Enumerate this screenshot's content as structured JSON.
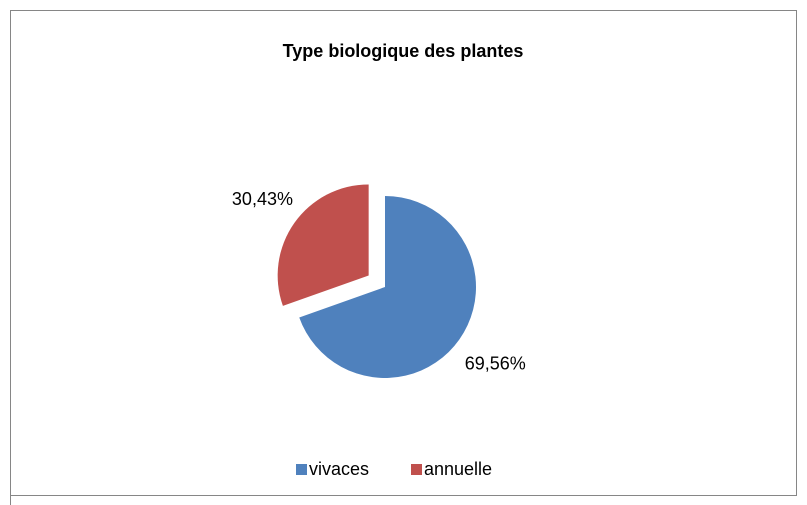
{
  "chart_data": {
    "type": "pie",
    "title": "Type biologique des plantes",
    "categories": [
      "vivaces",
      "annuelle"
    ],
    "values": [
      69.56,
      30.43
    ],
    "value_labels": [
      "69,56%",
      "30,43%"
    ],
    "colors": [
      "#4f81bd",
      "#c0504d"
    ],
    "legend": "bottom"
  }
}
